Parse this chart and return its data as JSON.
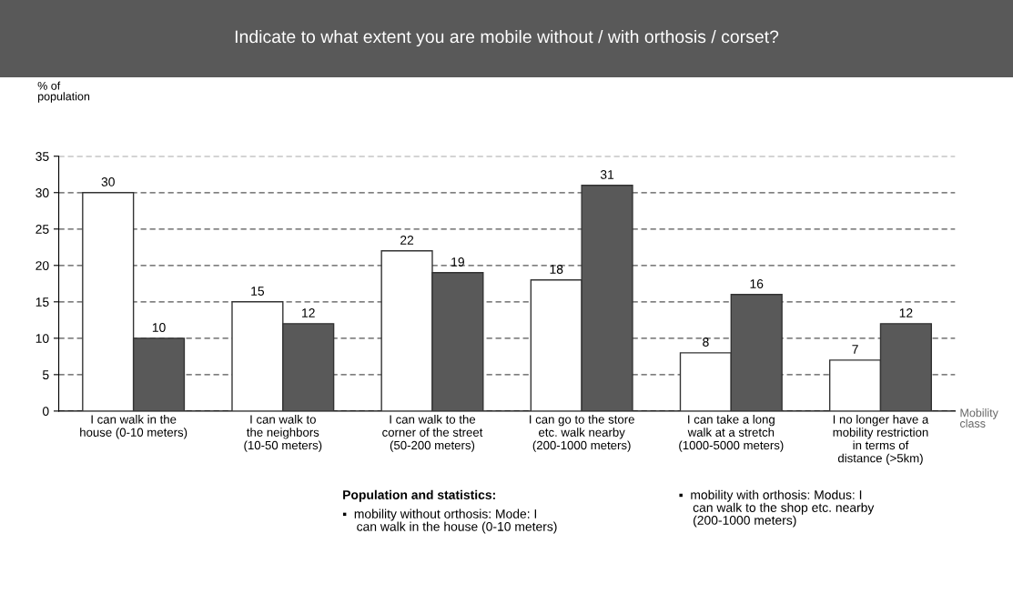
{
  "chart_data": {
    "type": "bar",
    "title": "Indicate to what extent you are mobile without / with orthosis / corset?",
    "ylabel": "% of\npopulation",
    "xlabel": "Mobility\nclass",
    "categories": [
      "I can walk in the\nhouse (0-10 meters)",
      "I can walk to\nthe neighbors\n(10-50 meters)",
      "I can walk to the\ncorner of the street\n(50-200 meters)",
      "I can go to the store\netc. walk nearby\n(200-1000 meters)",
      "I can take a long\nwalk at a stretch\n(1000-5000 meters)",
      "I no longer have a\nmobility restriction\nin terms of\ndistance (>5km)"
    ],
    "series": [
      {
        "color": "#ffffff",
        "values": [
          30,
          15,
          22,
          18,
          8,
          7
        ]
      },
      {
        "color": "#595959",
        "values": [
          10,
          12,
          19,
          31,
          16,
          12
        ]
      }
    ],
    "ylim": [
      0,
      35
    ],
    "yticks": [
      0,
      5,
      10,
      15,
      20,
      25,
      30,
      35
    ],
    "grid": "y",
    "data_labels": true,
    "legend": false,
    "annotations": [
      "Population and statistics:",
      "▪  mobility without orthosis: Mode: I\n    can walk in the house (0-10 meters)",
      "▪  mobility with orthosis: Modus: I\n    can walk to the shop etc. nearby\n    (200-1000 meters)"
    ]
  }
}
